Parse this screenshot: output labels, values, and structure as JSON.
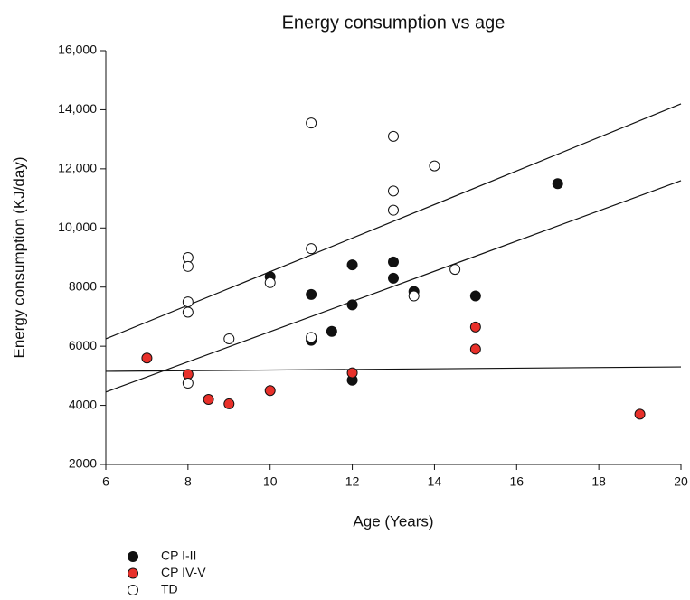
{
  "chart_data": {
    "type": "scatter",
    "title": "Energy consumption vs age",
    "x_label": "Age (Years)",
    "y_label": "Energy consumption (KJ/day)",
    "xlim": [
      6,
      20
    ],
    "xticks": [
      6,
      8,
      10,
      12,
      14,
      16,
      18,
      20
    ],
    "ylim": [
      2000,
      16000
    ],
    "yticks": [
      2000,
      4000,
      6000,
      8000,
      {
        "value": 10000,
        "label": "10,000"
      },
      {
        "value": 12000,
        "label": "12,000"
      },
      {
        "value": 14000,
        "label": "14,000"
      },
      {
        "value": 16000,
        "label": "16,000"
      }
    ],
    "series": [
      {
        "name": "CP I-II",
        "color": "#111111",
        "x": [
          10,
          11,
          11,
          11.5,
          12,
          12,
          12,
          13,
          13,
          13.5,
          15,
          17
        ],
        "values": [
          8350,
          7750,
          6200,
          6500,
          8750,
          7400,
          4850,
          8850,
          8300,
          7850,
          7700,
          11500
        ]
      },
      {
        "name": "CP IV-V",
        "color": "#e8302a",
        "x": [
          7,
          8,
          8.5,
          9,
          10,
          12,
          15,
          15,
          19
        ],
        "values": [
          5600,
          5050,
          4200,
          4050,
          4500,
          5100,
          6650,
          5900,
          3700
        ]
      },
      {
        "name": "TD",
        "color": "#ffffff",
        "x": [
          8,
          8,
          8,
          8,
          8,
          9,
          10,
          11,
          11,
          11,
          13,
          13,
          13,
          13.5,
          14,
          14.5
        ],
        "values": [
          9000,
          8700,
          7500,
          7150,
          4750,
          6250,
          8150,
          13550,
          9300,
          6300,
          13100,
          11250,
          10600,
          7700,
          12100,
          8600
        ]
      }
    ],
    "trend_lines": [
      {
        "x": [
          6,
          20
        ],
        "values": [
          6250,
          14200
        ]
      },
      {
        "x": [
          6,
          20
        ],
        "values": [
          4450,
          11600
        ]
      },
      {
        "x": [
          6,
          20
        ],
        "values": [
          5150,
          5300
        ]
      }
    ]
  }
}
